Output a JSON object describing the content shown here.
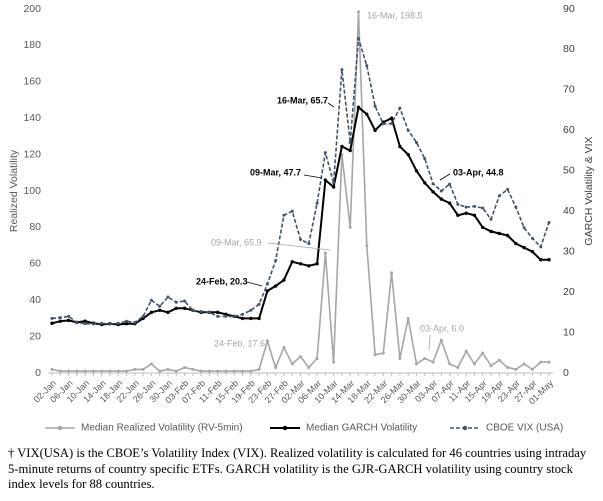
{
  "chart_data": {
    "type": "line",
    "ylabel": "Realized Volatility",
    "y2label": "GARCH Volatility & VIX",
    "categories": [
      "02-Jan",
      null,
      "06-Jan",
      null,
      "10-Jan",
      null,
      "14-Jan",
      null,
      "18-Jan",
      null,
      "22-Jan",
      null,
      "26-Jan",
      null,
      "30-Jan",
      null,
      "03-Feb",
      null,
      "07-Feb",
      null,
      "11-Feb",
      null,
      "15-Feb",
      null,
      "19-Feb",
      null,
      "23-Feb",
      null,
      "27-Feb",
      null,
      "02-Mar",
      null,
      "06-Mar",
      null,
      "10-Mar",
      null,
      "14-Mar",
      null,
      "18-Mar",
      null,
      "22-Mar",
      null,
      "26-Mar",
      null,
      "30-Mar",
      null,
      "03-Apr",
      null,
      "07-Apr",
      null,
      "11-Apr",
      null,
      "15-Apr",
      null,
      "19-Apr",
      null,
      "23-Apr",
      null,
      "27-Apr",
      null,
      "01-May"
    ],
    "series": [
      {
        "name": "Median Realized Volatility (RV-5min)",
        "color": "#a6a6a6",
        "axis": "y",
        "style": "solid",
        "values": [
          2,
          1,
          1,
          1,
          1,
          1,
          1,
          1,
          1,
          1,
          2,
          2,
          5,
          1,
          2,
          1,
          3,
          2,
          1,
          1,
          1,
          1,
          1,
          1,
          1,
          2,
          17.6,
          3,
          14,
          5,
          9,
          3,
          8,
          65.9,
          6,
          120,
          80,
          198.5,
          70,
          10,
          11,
          55,
          8,
          30,
          5,
          8,
          6,
          18,
          5,
          3,
          12,
          5,
          11,
          4,
          7,
          3,
          2,
          5,
          2,
          6,
          6
        ]
      },
      {
        "name": "Median GARCH Volatility",
        "color": "#000000",
        "axis": "y2",
        "style": "solid",
        "values": [
          12.3,
          12.8,
          13,
          12.5,
          12.8,
          12.3,
          12,
          12.2,
          12,
          12.2,
          12.2,
          13.5,
          15,
          15.5,
          15,
          16,
          16,
          15.5,
          15,
          15,
          15,
          14.5,
          14,
          13.5,
          13.5,
          13.5,
          20.3,
          21.5,
          23,
          27.5,
          27,
          26.5,
          27,
          47.7,
          46,
          56,
          55,
          65.7,
          64,
          60,
          62,
          63,
          56,
          54,
          50,
          47,
          44.8,
          43,
          42,
          39,
          39.5,
          39,
          36,
          35,
          34.5,
          34,
          32,
          31,
          30,
          28,
          28
        ]
      },
      {
        "name": "CBOE VIX (USA)",
        "color": "#44546a",
        "axis": "y2",
        "style": "dashed",
        "values": [
          13.5,
          13.7,
          14,
          12.5,
          12.2,
          12.1,
          12.3,
          12.1,
          12.3,
          12.8,
          12.5,
          14,
          18,
          16.5,
          18.8,
          17.5,
          17.8,
          15.5,
          15.2,
          15,
          14,
          14,
          14,
          14.5,
          15.5,
          17,
          22,
          27.8,
          39,
          40,
          33,
          32,
          42,
          54.5,
          47,
          75,
          57,
          82.7,
          76,
          66,
          61.6,
          61.7,
          65.5,
          60,
          57,
          53,
          46.8,
          45,
          46.7,
          41.7,
          41,
          41.2,
          40.8,
          38,
          43.8,
          45.4,
          41,
          35.9,
          33.3,
          31.2,
          37.2
        ]
      }
    ],
    "ylim": [
      0,
      200
    ],
    "yticks": [
      0,
      20,
      40,
      60,
      80,
      100,
      120,
      140,
      160,
      180,
      200
    ],
    "y2lim": [
      0,
      90
    ],
    "y2ticks": [
      0,
      10,
      20,
      30,
      40,
      50,
      60,
      70,
      80,
      90
    ],
    "grid": false,
    "legend": "bottom",
    "annotations": [
      "16-Mar, 198.5",
      "16-Mar, 65.7",
      "09-Mar, 47.7",
      "03-Apr, 44.8",
      "09-Mar, 65.9",
      "24-Feb, 20.3",
      "24-Feb, 17.6",
      "03-Apr, 6.0"
    ],
    "footnote": "† VIX(USA) is the CBOE’s Volatility Index (VIX). Realized volatility is calculated for 46 countries using intraday 5-minute returns of country specific ETFs. GARCH volatility is the GJR-GARCH volatility using country stock index levels for 88 countries."
  }
}
